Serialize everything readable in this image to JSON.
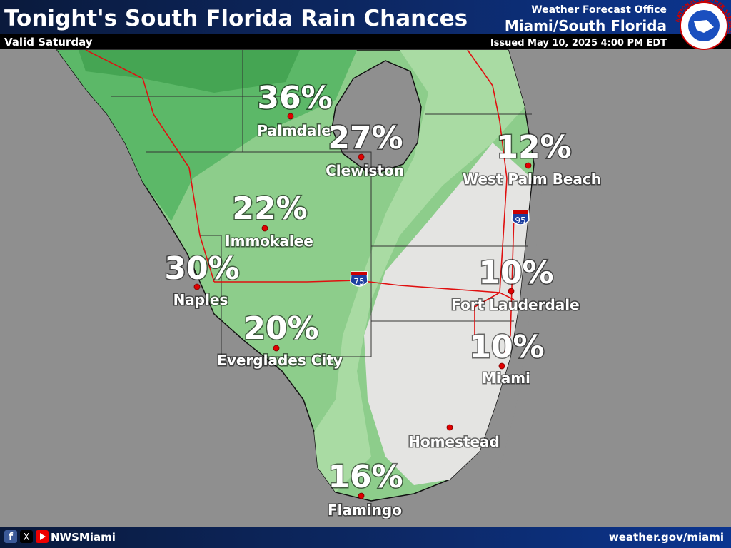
{
  "header": {
    "title": "Tonight's South Florida Rain Chances",
    "subtitle": "Valid Saturday",
    "office": "Weather Forecast Office",
    "office_name": "Miami/South Florida",
    "issued": "Issued May 10, 2025 4:00 PM EDT",
    "logo": "NATIONAL WEATHER SERVICE"
  },
  "cities": [
    {
      "name": "Palmdale",
      "chance": "36%"
    },
    {
      "name": "Clewiston",
      "chance": "27%"
    },
    {
      "name": "West Palm Beach",
      "chance": "12%"
    },
    {
      "name": "Immokalee",
      "chance": "22%"
    },
    {
      "name": "Naples",
      "chance": "30%"
    },
    {
      "name": "Fort Lauderdale",
      "chance": "10%"
    },
    {
      "name": "Everglades City",
      "chance": "20%"
    },
    {
      "name": "Miami",
      "chance": "10%"
    },
    {
      "name": "Homestead"
    },
    {
      "name": "Flamingo",
      "chance": "16%"
    }
  ],
  "shields": [
    "95",
    "75"
  ],
  "footer": {
    "handle": "NWSMiami",
    "url": "weather.gov/miami"
  }
}
